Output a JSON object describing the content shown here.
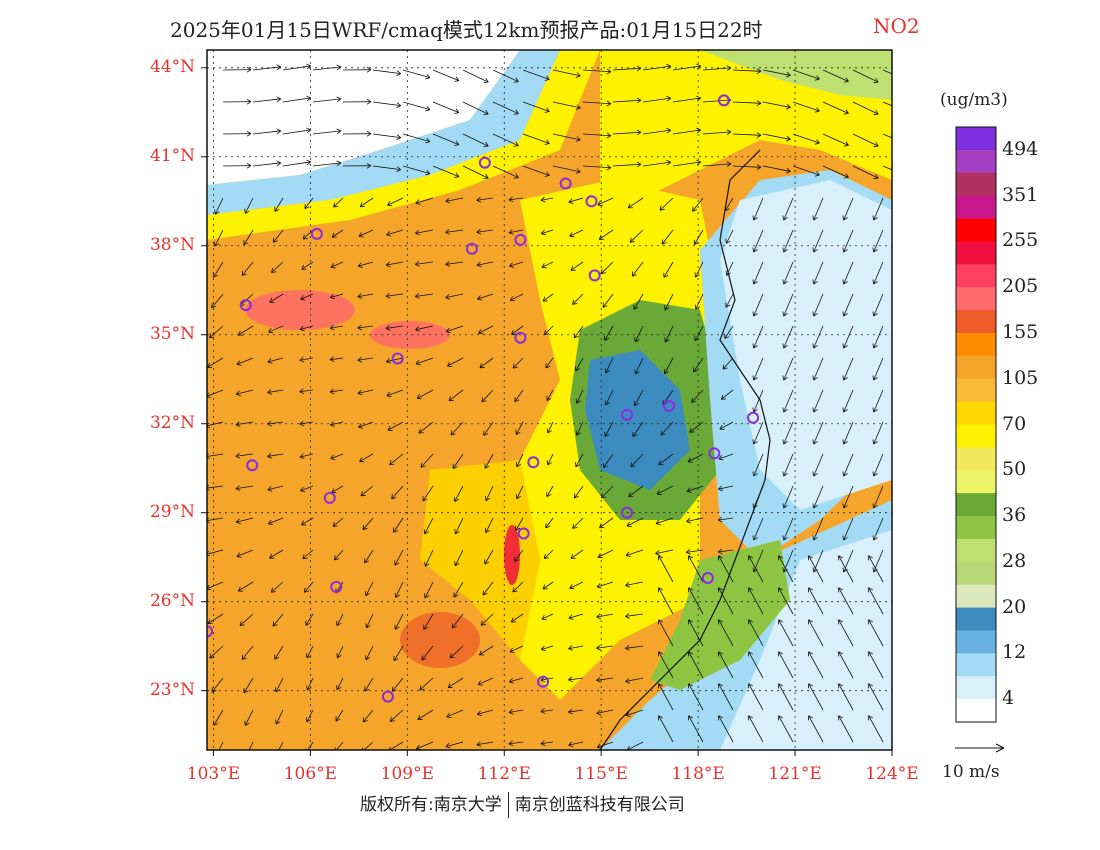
{
  "title": {
    "main": "2025年01月15日WRF/cmaq模式12km预报产品:01月15日22时",
    "pollutant": "NO2",
    "pollutant_color": "#e8322d"
  },
  "axes": {
    "lat_labels": [
      "44°N",
      "41°N",
      "38°N",
      "35°N",
      "32°N",
      "29°N",
      "26°N",
      "23°N"
    ],
    "lon_labels": [
      "103°E",
      "106°E",
      "109°E",
      "112°E",
      "115°E",
      "118°E",
      "121°E",
      "124°E"
    ],
    "label_color": "#e8322d"
  },
  "colorbar": {
    "unit": "(ug/m3)",
    "labels": [
      "494",
      "351",
      "255",
      "205",
      "155",
      "105",
      "70",
      "50",
      "36",
      "28",
      "20",
      "12",
      "4"
    ],
    "colors": [
      "#7f2ee0",
      "#a43ec0",
      "#b03060",
      "#c8168c",
      "#ff0000",
      "#ef1040",
      "#ff3f5f",
      "#ff6a6a",
      "#ee5a2a",
      "#ff8c00",
      "#f5a52a",
      "#fcb93a",
      "#ffd700",
      "#fff200",
      "#f2e85c",
      "#edf567",
      "#6aa838",
      "#8dc542",
      "#bde070",
      "#b8d878",
      "#dbe9bd",
      "#3d8cc0",
      "#6ab2e0",
      "#a3dbf5",
      "#d8f0fb",
      "#ffffff"
    ]
  },
  "wind": {
    "reference_label": "10 m/s"
  },
  "footer": {
    "left": "版权所有:南京大学",
    "right": "南京创蓝科技有限公司"
  },
  "sites": [
    {
      "lon": 118.8,
      "lat": 42.9
    },
    {
      "lon": 111.4,
      "lat": 40.8
    },
    {
      "lon": 113.9,
      "lat": 40.1
    },
    {
      "lon": 114.7,
      "lat": 39.5
    },
    {
      "lon": 106.2,
      "lat": 38.4
    },
    {
      "lon": 111.0,
      "lat": 37.9
    },
    {
      "lon": 112.5,
      "lat": 38.2
    },
    {
      "lon": 114.8,
      "lat": 37.0
    },
    {
      "lon": 104.0,
      "lat": 36.0
    },
    {
      "lon": 112.5,
      "lat": 34.9
    },
    {
      "lon": 108.7,
      "lat": 34.2
    },
    {
      "lon": 117.1,
      "lat": 32.6
    },
    {
      "lon": 115.8,
      "lat": 32.3
    },
    {
      "lon": 119.7,
      "lat": 32.2
    },
    {
      "lon": 118.5,
      "lat": 31.0
    },
    {
      "lon": 104.2,
      "lat": 30.6
    },
    {
      "lon": 112.9,
      "lat": 30.7
    },
    {
      "lon": 106.6,
      "lat": 29.5
    },
    {
      "lon": 115.8,
      "lat": 29.0
    },
    {
      "lon": 112.6,
      "lat": 28.3
    },
    {
      "lon": 106.8,
      "lat": 26.5
    },
    {
      "lon": 118.3,
      "lat": 26.8
    },
    {
      "lon": 102.8,
      "lat": 25.0
    },
    {
      "lon": 108.4,
      "lat": 22.8
    },
    {
      "lon": 113.2,
      "lat": 23.3
    }
  ]
}
